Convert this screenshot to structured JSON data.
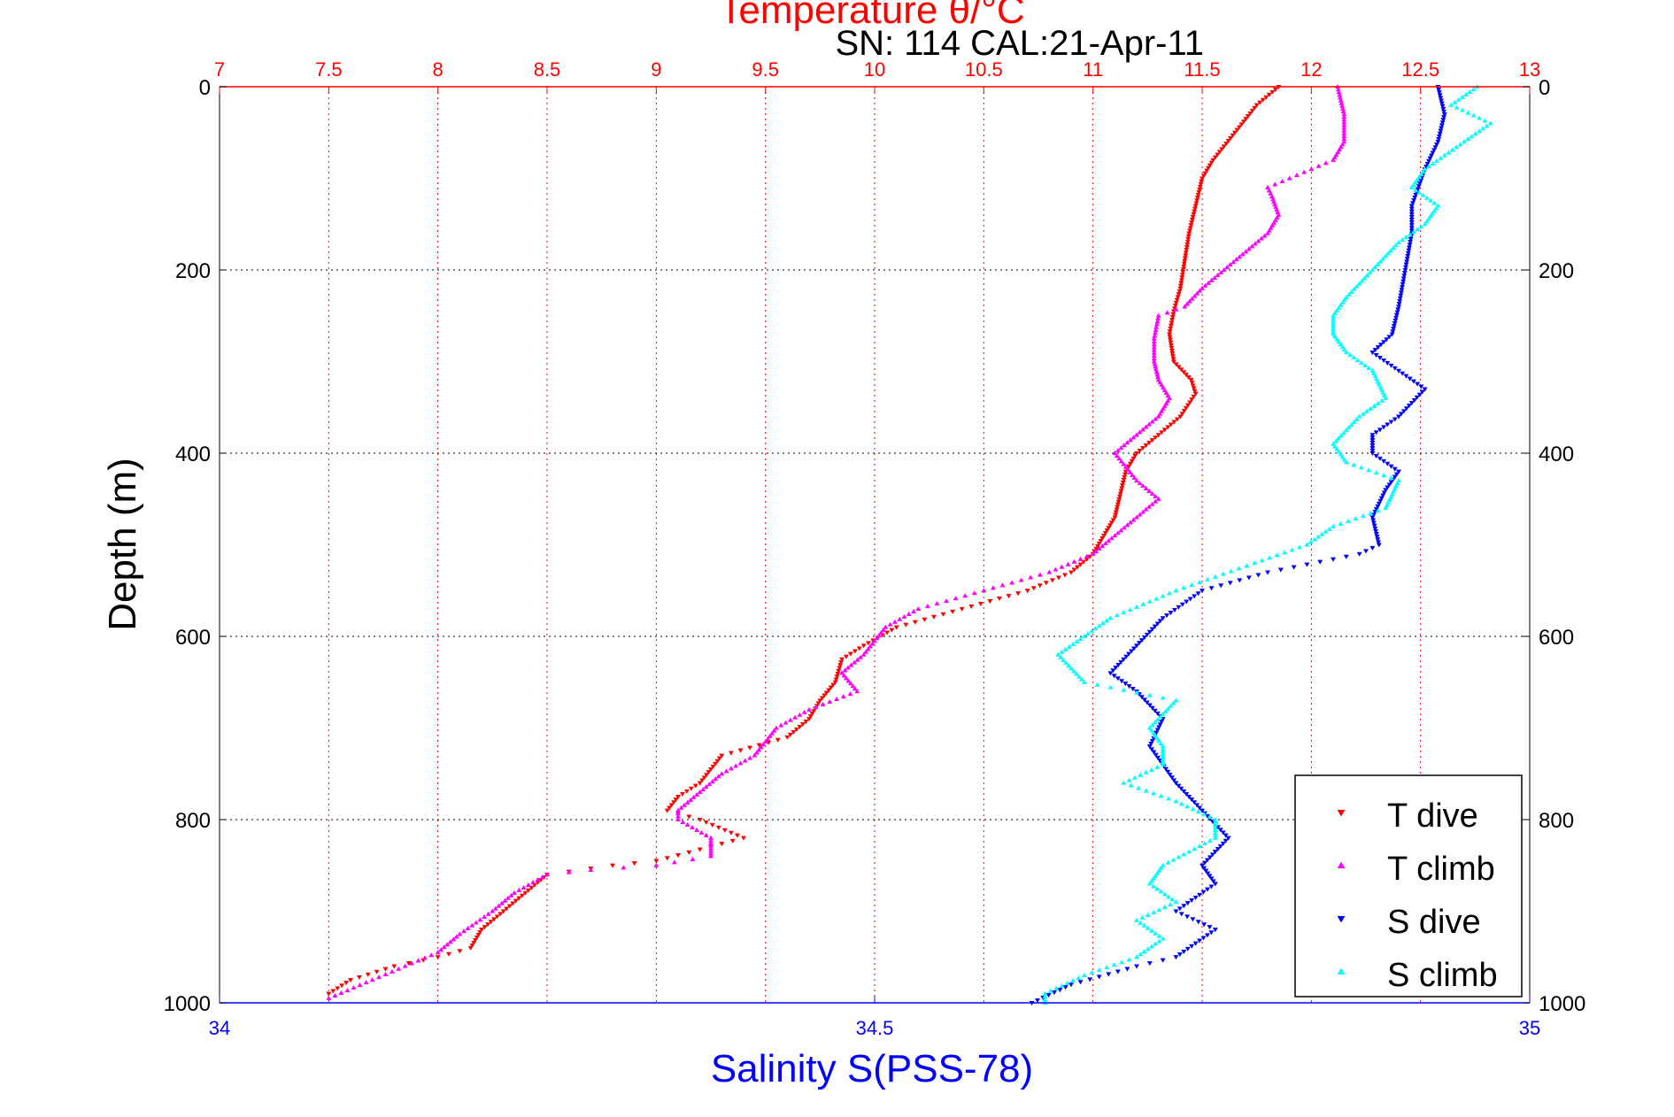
{
  "chart_data": {
    "type": "scatter",
    "title": "Temperature θ/°C",
    "subtitle": "SN: 114  CAL:21-Apr-11",
    "ylabel": "Depth (m)",
    "xlabel": "Salinity S(PSS-78)",
    "temperature_axis": {
      "range": [
        7,
        13
      ],
      "ticks": [
        "7",
        "7.5",
        "8",
        "8.5",
        "9",
        "9.5",
        "10",
        "10.5",
        "11",
        "11.5",
        "12",
        "12.5",
        "13"
      ],
      "color": "#ff0000"
    },
    "salinity_axis": {
      "range": [
        34,
        35
      ],
      "ticks": [
        "34",
        "34.5",
        "35"
      ],
      "color": "#0000ff"
    },
    "depth_axis": {
      "range": [
        0,
        1000
      ],
      "reversed": true,
      "ticks": [
        "0",
        "200",
        "400",
        "600",
        "800",
        "1000"
      ]
    },
    "grid": true,
    "legend_position": "bottom-right",
    "series": [
      {
        "name": "T dive",
        "axis": "temperature",
        "color": "#ff0000",
        "marker": "triangle-down",
        "points": [
          [
            11.85,
            0
          ],
          [
            11.75,
            20
          ],
          [
            11.65,
            50
          ],
          [
            11.55,
            80
          ],
          [
            11.5,
            100
          ],
          [
            11.47,
            130
          ],
          [
            11.44,
            160
          ],
          [
            11.42,
            190
          ],
          [
            11.4,
            220
          ],
          [
            11.37,
            245
          ],
          [
            11.35,
            270
          ],
          [
            11.37,
            300
          ],
          [
            11.45,
            320
          ],
          [
            11.47,
            335
          ],
          [
            11.4,
            360
          ],
          [
            11.3,
            380
          ],
          [
            11.2,
            400
          ],
          [
            11.15,
            420
          ],
          [
            11.12,
            450
          ],
          [
            11.1,
            470
          ],
          [
            11.05,
            490
          ],
          [
            11.0,
            510
          ],
          [
            10.9,
            530
          ],
          [
            10.7,
            550
          ],
          [
            10.4,
            570
          ],
          [
            10.1,
            590
          ],
          [
            9.95,
            610
          ],
          [
            9.85,
            625
          ],
          [
            9.82,
            650
          ],
          [
            9.75,
            670
          ],
          [
            9.7,
            690
          ],
          [
            9.6,
            710
          ],
          [
            9.3,
            730
          ],
          [
            9.2,
            760
          ],
          [
            9.1,
            775
          ],
          [
            9.05,
            790
          ],
          [
            9.2,
            800
          ],
          [
            9.4,
            820
          ],
          [
            9.0,
            845
          ],
          [
            8.8,
            850
          ],
          [
            8.5,
            860
          ],
          [
            8.4,
            880
          ],
          [
            8.3,
            900
          ],
          [
            8.2,
            920
          ],
          [
            8.15,
            940
          ],
          [
            8.0,
            950
          ],
          [
            7.8,
            960
          ],
          [
            7.6,
            975
          ],
          [
            7.5,
            990
          ]
        ]
      },
      {
        "name": "T climb",
        "axis": "temperature",
        "color": "#ff00ff",
        "marker": "triangle-up",
        "points": [
          [
            12.12,
            0
          ],
          [
            12.15,
            30
          ],
          [
            12.15,
            60
          ],
          [
            12.1,
            80
          ],
          [
            12.0,
            90
          ],
          [
            11.9,
            100
          ],
          [
            11.8,
            110
          ],
          [
            11.82,
            120
          ],
          [
            11.85,
            140
          ],
          [
            11.8,
            160
          ],
          [
            11.7,
            180
          ],
          [
            11.6,
            200
          ],
          [
            11.5,
            220
          ],
          [
            11.42,
            240
          ],
          [
            11.3,
            250
          ],
          [
            11.28,
            275
          ],
          [
            11.28,
            300
          ],
          [
            11.3,
            320
          ],
          [
            11.35,
            340
          ],
          [
            11.3,
            360
          ],
          [
            11.2,
            380
          ],
          [
            11.1,
            400
          ],
          [
            11.2,
            430
          ],
          [
            11.3,
            450
          ],
          [
            11.2,
            470
          ],
          [
            11.1,
            490
          ],
          [
            11.0,
            510
          ],
          [
            10.8,
            530
          ],
          [
            10.5,
            550
          ],
          [
            10.2,
            570
          ],
          [
            10.05,
            590
          ],
          [
            9.95,
            620
          ],
          [
            9.85,
            640
          ],
          [
            9.92,
            660
          ],
          [
            9.7,
            680
          ],
          [
            9.55,
            700
          ],
          [
            9.45,
            730
          ],
          [
            9.3,
            750
          ],
          [
            9.2,
            770
          ],
          [
            9.1,
            790
          ],
          [
            9.1,
            800
          ],
          [
            9.25,
            820
          ],
          [
            9.25,
            840
          ],
          [
            9.0,
            850
          ],
          [
            8.7,
            855
          ],
          [
            8.5,
            860
          ],
          [
            8.35,
            880
          ],
          [
            8.25,
            900
          ],
          [
            8.1,
            925
          ],
          [
            8.0,
            945
          ],
          [
            7.85,
            960
          ],
          [
            7.7,
            975
          ],
          [
            7.5,
            995
          ]
        ]
      },
      {
        "name": "S dive",
        "axis": "salinity",
        "color": "#0000ff",
        "marker": "triangle-down",
        "points": [
          [
            34.93,
            0
          ],
          [
            34.935,
            30
          ],
          [
            34.93,
            60
          ],
          [
            34.92,
            90
          ],
          [
            34.91,
            130
          ],
          [
            34.91,
            160
          ],
          [
            34.905,
            200
          ],
          [
            34.9,
            240
          ],
          [
            34.895,
            270
          ],
          [
            34.88,
            290
          ],
          [
            34.9,
            310
          ],
          [
            34.92,
            330
          ],
          [
            34.9,
            360
          ],
          [
            34.88,
            380
          ],
          [
            34.88,
            400
          ],
          [
            34.9,
            420
          ],
          [
            34.89,
            440
          ],
          [
            34.88,
            470
          ],
          [
            34.885,
            500
          ],
          [
            34.87,
            510
          ],
          [
            34.8,
            530
          ],
          [
            34.75,
            550
          ],
          [
            34.72,
            580
          ],
          [
            34.7,
            610
          ],
          [
            34.68,
            640
          ],
          [
            34.7,
            660
          ],
          [
            34.72,
            690
          ],
          [
            34.71,
            720
          ],
          [
            34.73,
            760
          ],
          [
            34.75,
            790
          ],
          [
            34.77,
            820
          ],
          [
            34.75,
            850
          ],
          [
            34.76,
            870
          ],
          [
            34.73,
            900
          ],
          [
            34.76,
            920
          ],
          [
            34.73,
            950
          ],
          [
            34.7,
            960
          ],
          [
            34.65,
            980
          ],
          [
            34.62,
            1000
          ]
        ]
      },
      {
        "name": "S climb",
        "axis": "salinity",
        "color": "#00ffff",
        "marker": "triangle-up",
        "points": [
          [
            34.96,
            0
          ],
          [
            34.94,
            20
          ],
          [
            34.97,
            40
          ],
          [
            34.95,
            60
          ],
          [
            34.92,
            90
          ],
          [
            34.91,
            110
          ],
          [
            34.93,
            130
          ],
          [
            34.92,
            150
          ],
          [
            34.9,
            170
          ],
          [
            34.88,
            200
          ],
          [
            34.86,
            230
          ],
          [
            34.85,
            250
          ],
          [
            34.85,
            270
          ],
          [
            34.86,
            290
          ],
          [
            34.88,
            310
          ],
          [
            34.89,
            340
          ],
          [
            34.87,
            360
          ],
          [
            34.85,
            390
          ],
          [
            34.86,
            410
          ],
          [
            34.9,
            430
          ],
          [
            34.89,
            460
          ],
          [
            34.85,
            480
          ],
          [
            34.83,
            500
          ],
          [
            34.79,
            520
          ],
          [
            34.73,
            550
          ],
          [
            34.68,
            580
          ],
          [
            34.66,
            600
          ],
          [
            34.64,
            620
          ],
          [
            34.66,
            650
          ],
          [
            34.73,
            670
          ],
          [
            34.71,
            700
          ],
          [
            34.72,
            720
          ],
          [
            34.72,
            740
          ],
          [
            34.69,
            760
          ],
          [
            34.73,
            780
          ],
          [
            34.76,
            800
          ],
          [
            34.76,
            820
          ],
          [
            34.72,
            850
          ],
          [
            34.71,
            870
          ],
          [
            34.73,
            890
          ],
          [
            34.7,
            910
          ],
          [
            34.72,
            930
          ],
          [
            34.7,
            950
          ],
          [
            34.66,
            970
          ],
          [
            34.63,
            990
          ],
          [
            34.63,
            1000
          ]
        ]
      }
    ]
  },
  "legend": [
    {
      "label": "T dive",
      "color": "#ff0000",
      "marker": "triangle-down"
    },
    {
      "label": "T climb",
      "color": "#ff00ff",
      "marker": "triangle-up"
    },
    {
      "label": "S dive",
      "color": "#0000ff",
      "marker": "triangle-down"
    },
    {
      "label": "S climb",
      "color": "#00ffff",
      "marker": "triangle-up"
    }
  ]
}
